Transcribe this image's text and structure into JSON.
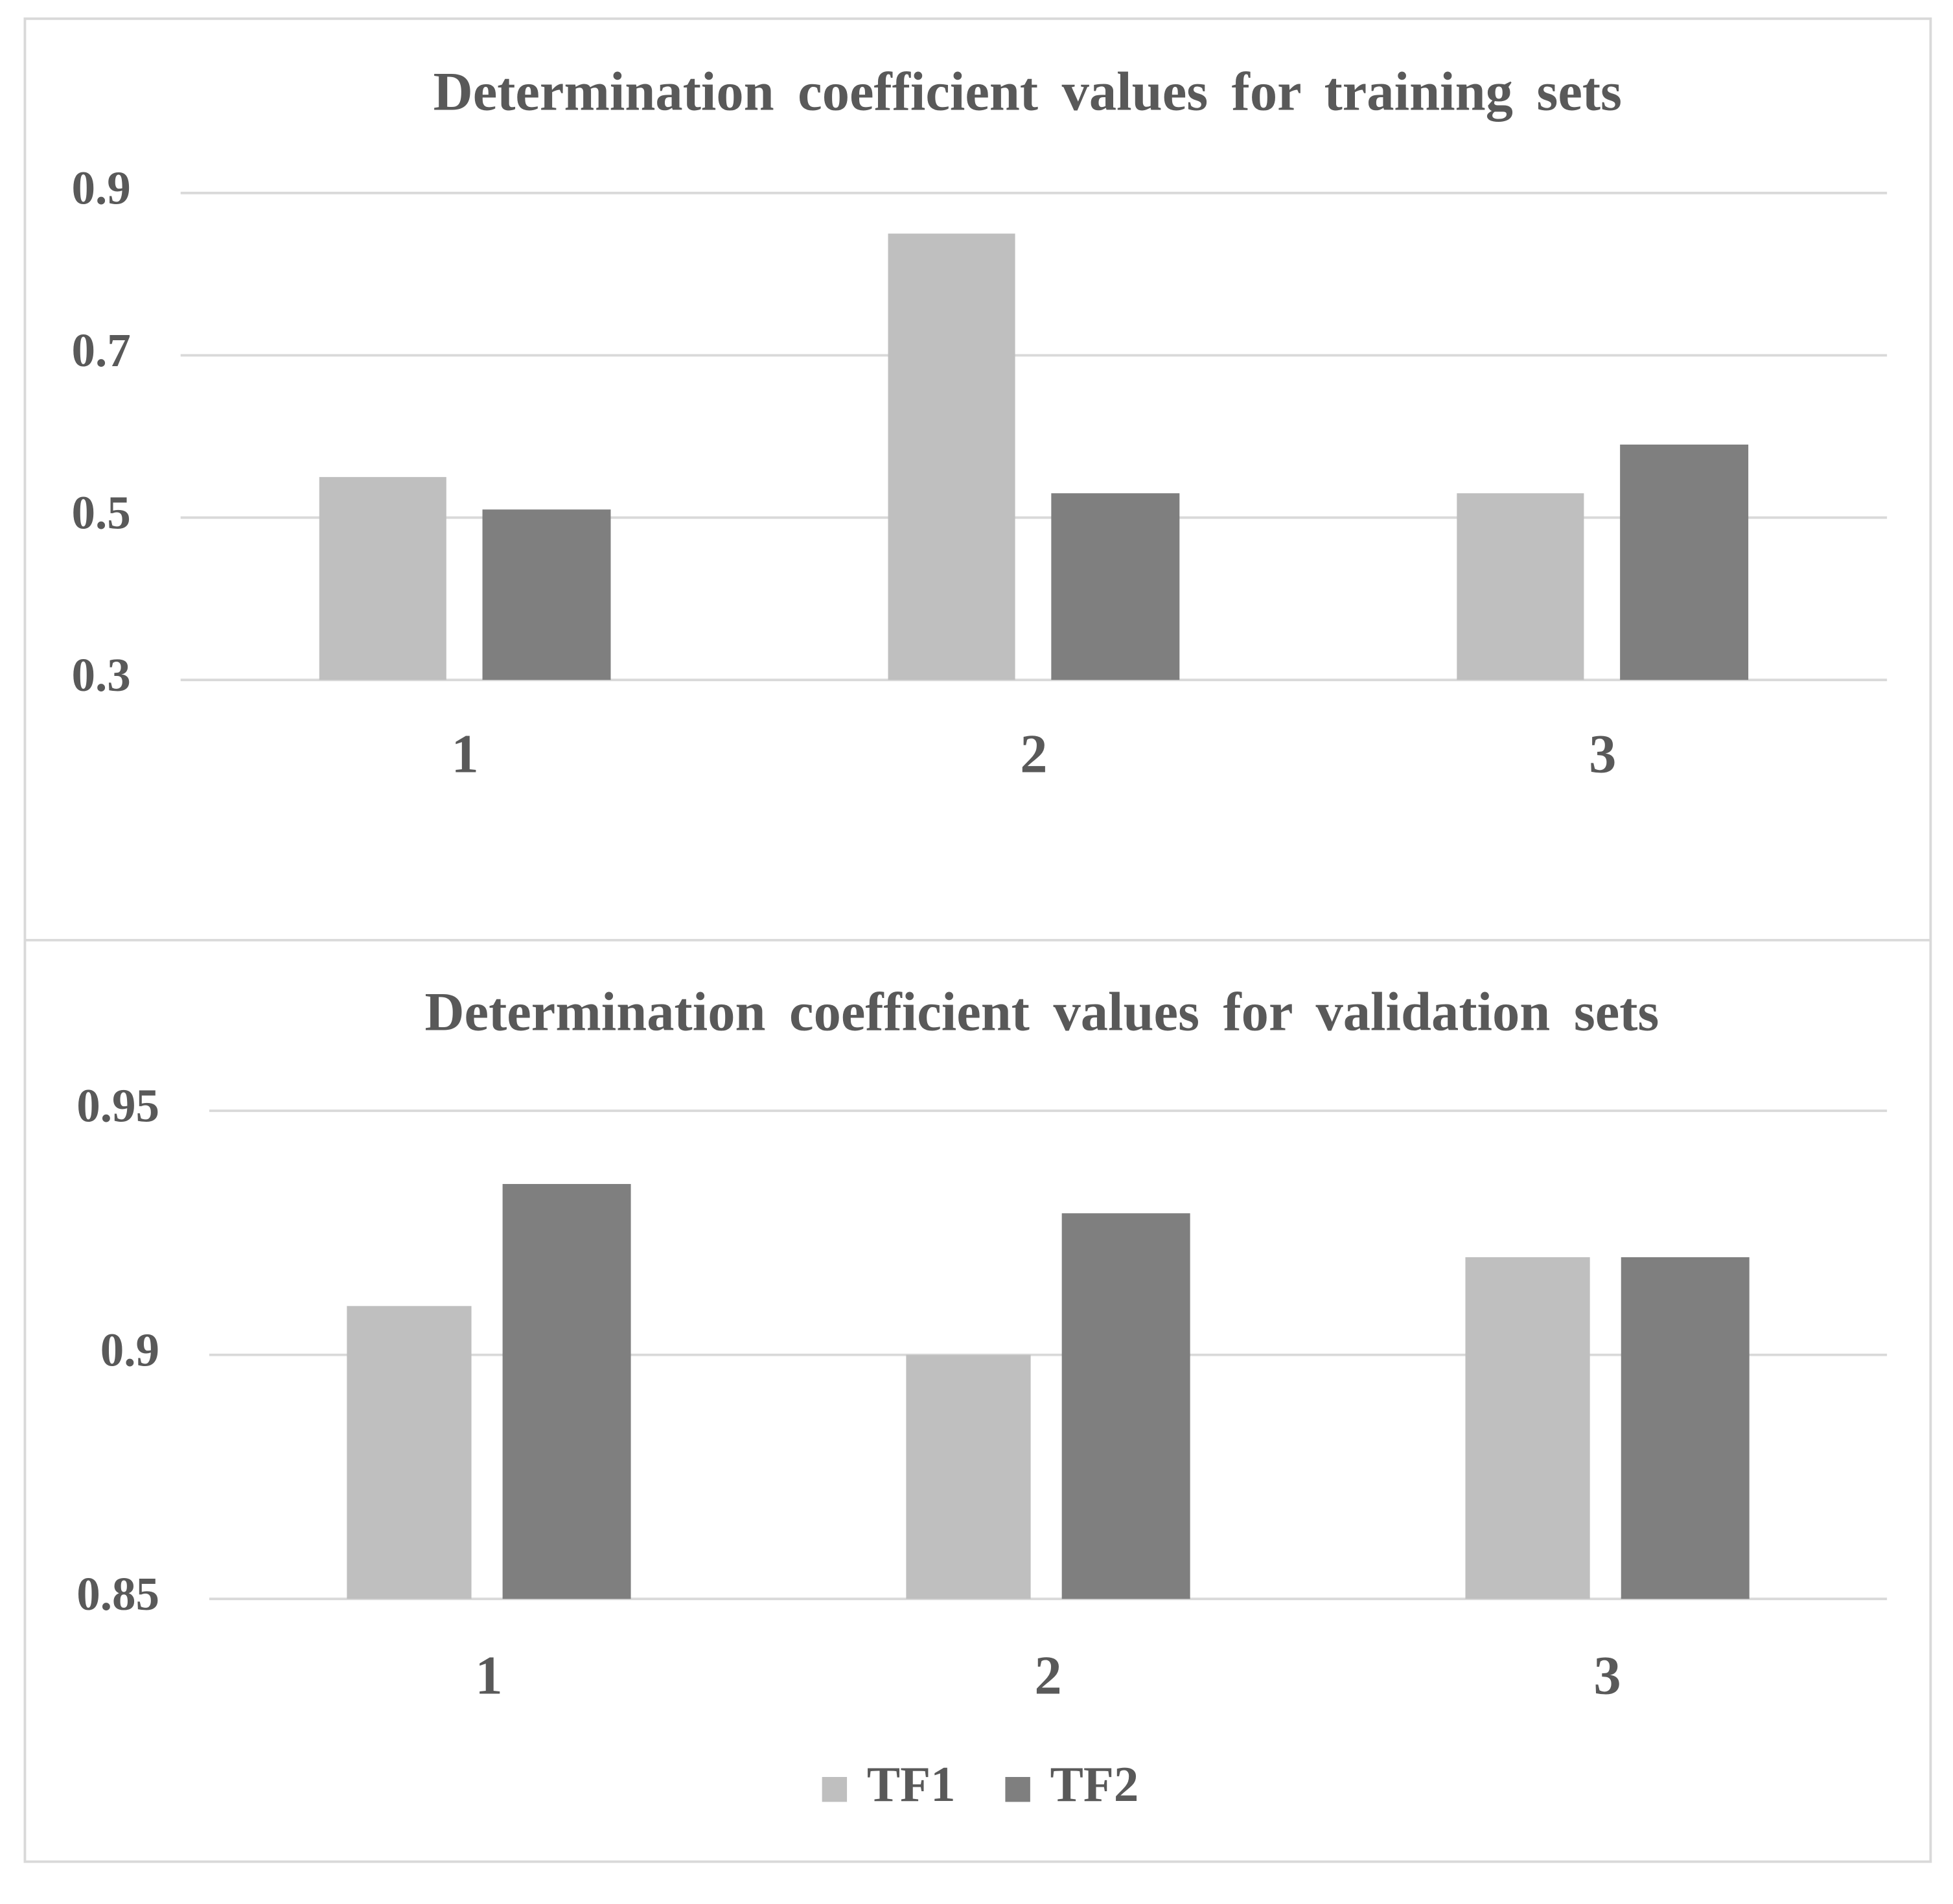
{
  "chart_data": [
    {
      "type": "bar",
      "title": "Determination coefficient values for training sets",
      "categories": [
        "1",
        "2",
        "3"
      ],
      "series": [
        {
          "color": "#bfbfbf",
          "values": [
            0.55,
            0.85,
            0.53
          ]
        },
        {
          "color": "#7f7f7f",
          "values": [
            0.51,
            0.53,
            0.59
          ]
        }
      ],
      "ylim": [
        0.3,
        0.9
      ],
      "yticks": [
        0.3,
        0.5,
        0.7,
        0.9
      ],
      "grid": true
    },
    {
      "type": "bar",
      "title": "Determination coefficient values for validation sets",
      "categories": [
        "1",
        "2",
        "3"
      ],
      "series": [
        {
          "name": "TF1",
          "color": "#bfbfbf",
          "values": [
            0.91,
            0.9,
            0.92
          ]
        },
        {
          "name": "TF2",
          "color": "#7f7f7f",
          "values": [
            0.935,
            0.929,
            0.92
          ]
        }
      ],
      "ylim": [
        0.85,
        0.95
      ],
      "yticks": [
        0.85,
        0.9,
        0.95
      ],
      "grid": true,
      "legend": "bottom"
    }
  ]
}
